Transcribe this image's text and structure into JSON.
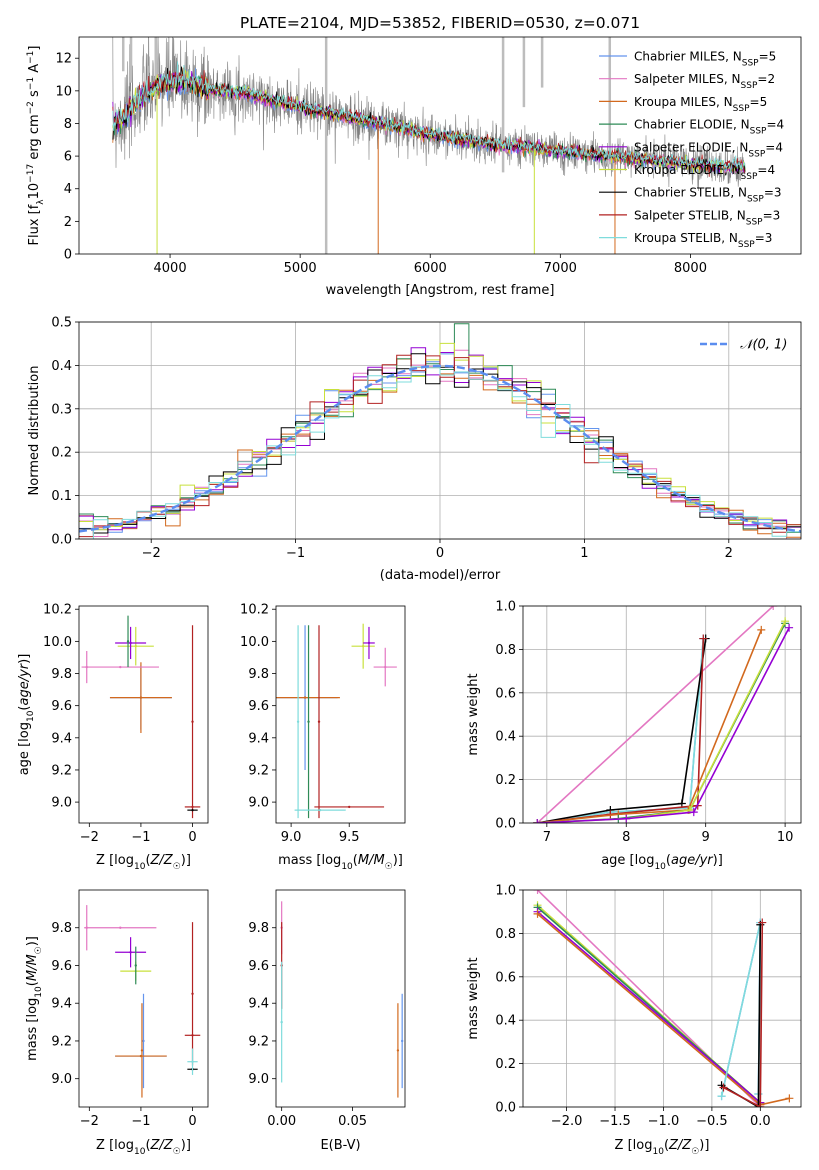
{
  "colors": {
    "chabrier_miles": "#6495ed",
    "salpeter_miles": "#e377c2",
    "kroupa_miles": "#d2691e",
    "chabrier_elodie": "#2e8b57",
    "salpeter_elodie": "#9400d3",
    "kroupa_elodie": "#c8e03c",
    "chabrier_stelib": "#000000",
    "salpeter_stelib": "#b22222",
    "kroupa_stelib": "#7fdcdc",
    "data_grey": "#808080",
    "normal_curve": "#5b8def"
  },
  "chart_data": [
    {
      "id": "spectrum",
      "type": "line",
      "title": "PLATE=2104, MJD=53852, FIBERID=0530, z=0.071",
      "xlabel": "wavelength [Angstrom, rest frame]",
      "ylabel": "Flux [f_λ10^-17 erg cm^-2 s^-1 A^-1]",
      "xlim": [
        3300,
        8850
      ],
      "ylim": [
        0,
        13.3
      ],
      "xticks": [
        4000,
        5000,
        6000,
        7000,
        8000
      ],
      "yticks": [
        0,
        2,
        4,
        6,
        8,
        10,
        12
      ],
      "legend_position": "top-right",
      "legend": [
        {
          "name": "Chabrier MILES",
          "n": "5",
          "color": "#6495ed"
        },
        {
          "name": "Salpeter MILES",
          "n": "2",
          "color": "#e377c2"
        },
        {
          "name": "Kroupa MILES",
          "n": "5",
          "color": "#d2691e"
        },
        {
          "name": "Chabrier ELODIE",
          "n": "4",
          "color": "#2e8b57"
        },
        {
          "name": "Salpeter ELODIE",
          "n": "4",
          "color": "#9400d3"
        },
        {
          "name": "Kroupa ELODIE",
          "n": "4",
          "color": "#c8e03c"
        },
        {
          "name": "Chabrier STELIB",
          "n": "3",
          "color": "#000000"
        },
        {
          "name": "Salpeter STELIB",
          "n": "3",
          "color": "#b22222"
        },
        {
          "name": "Kroupa STELIB",
          "n": "3",
          "color": "#7fdcdc"
        }
      ],
      "continuum": [
        [
          3550,
          8.0
        ],
        [
          3650,
          8.4
        ],
        [
          3800,
          9.8
        ],
        [
          3950,
          10.5
        ],
        [
          4100,
          10.6
        ],
        [
          4300,
          10.1
        ],
        [
          4600,
          9.8
        ],
        [
          5000,
          9.0
        ],
        [
          5500,
          8.2
        ],
        [
          6000,
          7.3
        ],
        [
          6500,
          6.7
        ],
        [
          7000,
          6.3
        ],
        [
          7500,
          5.9
        ],
        [
          8000,
          5.5
        ],
        [
          8400,
          5.3
        ]
      ]
    },
    {
      "id": "residuals",
      "type": "histogram",
      "xlabel": "(data-model)/error",
      "ylabel": "Normed distribution",
      "xlim": [
        -2.5,
        2.5
      ],
      "ylim": [
        0,
        0.5
      ],
      "xticks": [
        -2,
        -1,
        0,
        1,
        2
      ],
      "yticks": [
        0.0,
        0.1,
        0.2,
        0.3,
        0.4,
        0.5
      ],
      "grid": true,
      "legend_position": "top-right",
      "legend": [
        {
          "name": "𝒩(0, 1)",
          "color": "#5b8def",
          "style": "dashed"
        }
      ],
      "bin_width": 0.1,
      "curve": "normal pdf, mean 0, sigma 1"
    },
    {
      "id": "age_vs_Z",
      "type": "errorbar",
      "xlabel": "Z [log10(Z/Z☉)]",
      "ylabel": "age  [log10(age/yr)]",
      "xlim": [
        -2.2,
        0.3
      ],
      "ylim": [
        8.87,
        10.22
      ],
      "xticks": [
        -2,
        -1,
        0
      ],
      "yticks": [
        9.0,
        9.2,
        9.4,
        9.6,
        9.8,
        10.0,
        10.2
      ],
      "points": [
        {
          "x": -1.0,
          "y": 9.65,
          "xerr": 0.6,
          "yerr": 0.2,
          "color": "#6495ed"
        },
        {
          "x": -1.0,
          "y": 9.65,
          "xerr": 0.6,
          "yerr": 0.22,
          "color": "#d2691e"
        },
        {
          "x": -1.4,
          "y": 9.84,
          "xerr": 0.75,
          "yerr": 0.0,
          "color": "#e377c2"
        },
        {
          "x": -2.05,
          "y": 9.84,
          "xerr": 0.0,
          "yerr": 0.1,
          "color": "#e377c2"
        },
        {
          "x": -1.1,
          "y": 9.97,
          "xerr": 0.35,
          "yerr": 0.12,
          "color": "#c8e03c"
        },
        {
          "x": -1.2,
          "y": 9.99,
          "xerr": 0.3,
          "yerr": 0.1,
          "color": "#9400d3"
        },
        {
          "x": -1.25,
          "y": 10.0,
          "xerr": 0.0,
          "yerr": 0.16,
          "color": "#2e8b57"
        },
        {
          "x": 0.0,
          "y": 8.97,
          "xerr": 0.15,
          "yerr": 0.0,
          "color": "#b22222"
        },
        {
          "x": 0.0,
          "y": 9.5,
          "xerr": 0.0,
          "yerr": 0.6,
          "color": "#b22222"
        },
        {
          "x": 0.0,
          "y": 8.95,
          "xerr": 0.1,
          "yerr": 0.0,
          "color": "#000000"
        }
      ]
    },
    {
      "id": "age_vs_mass",
      "type": "errorbar",
      "xlabel": "mass [log10(M/M☉)]",
      "xlim": [
        8.87,
        9.98
      ],
      "ylim": [
        8.87,
        10.22
      ],
      "xticks": [
        9.0,
        9.5
      ],
      "yticks": [
        9.0,
        9.2,
        9.4,
        9.6,
        9.8,
        10.0,
        10.2
      ],
      "points": [
        {
          "x": 9.12,
          "y": 9.65,
          "xerr": 0.28,
          "yerr": 0.45,
          "color": "#6495ed"
        },
        {
          "x": 9.12,
          "y": 9.65,
          "xerr": 0.3,
          "yerr": 0.0,
          "color": "#d2691e"
        },
        {
          "x": 9.15,
          "y": 9.5,
          "xerr": 0.0,
          "yerr": 0.6,
          "color": "#2e8b57"
        },
        {
          "x": 9.62,
          "y": 9.97,
          "xerr": 0.1,
          "yerr": 0.14,
          "color": "#c8e03c"
        },
        {
          "x": 9.67,
          "y": 9.99,
          "xerr": 0.05,
          "yerr": 0.1,
          "color": "#9400d3"
        },
        {
          "x": 9.81,
          "y": 9.84,
          "xerr": 0.1,
          "yerr": 0.12,
          "color": "#e377c2"
        },
        {
          "x": 9.24,
          "y": 9.5,
          "xerr": 0.0,
          "yerr": 0.6,
          "color": "#b22222"
        },
        {
          "x": 9.5,
          "y": 8.97,
          "xerr": 0.3,
          "yerr": 0.0,
          "color": "#b22222"
        },
        {
          "x": 9.25,
          "y": 8.95,
          "xerr": 0.22,
          "yerr": 0.0,
          "color": "#7fdcdc"
        },
        {
          "x": 9.06,
          "y": 9.5,
          "xerr": 0.0,
          "yerr": 0.6,
          "color": "#7fdcdc"
        }
      ]
    },
    {
      "id": "weight_vs_age",
      "type": "line",
      "xlabel": "age  [log10(age/yr)]",
      "ylabel": "mass weight",
      "xlim": [
        6.7,
        10.2
      ],
      "ylim": [
        0,
        1.0
      ],
      "xticks": [
        7,
        8,
        9,
        10
      ],
      "yticks": [
        0.0,
        0.2,
        0.4,
        0.6,
        0.8,
        1.0
      ],
      "grid": true,
      "series": [
        {
          "color": "#e377c2",
          "x": [
            6.88,
            9.85
          ],
          "y": [
            0.0,
            1.0
          ]
        },
        {
          "color": "#6495ed",
          "x": [
            6.88,
            7.8,
            8.8,
            8.97
          ],
          "y": [
            0.0,
            0.05,
            0.07,
            0.85
          ]
        },
        {
          "color": "#7fdcdc",
          "x": [
            6.88,
            7.8,
            8.8,
            8.97
          ],
          "y": [
            0.0,
            0.05,
            0.07,
            0.85
          ]
        },
        {
          "color": "#000000",
          "x": [
            6.88,
            7.8,
            8.7,
            9.0
          ],
          "y": [
            0.0,
            0.06,
            0.09,
            0.85
          ]
        },
        {
          "color": "#b22222",
          "x": [
            6.88,
            7.8,
            8.9,
            8.97
          ],
          "y": [
            0.0,
            0.04,
            0.08,
            0.85
          ]
        },
        {
          "color": "#d2691e",
          "x": [
            6.88,
            7.9,
            8.78,
            9.7
          ],
          "y": [
            0.0,
            0.04,
            0.06,
            0.89
          ]
        },
        {
          "color": "#2e8b57",
          "x": [
            6.88,
            7.9,
            8.8,
            10.0
          ],
          "y": [
            0.0,
            0.02,
            0.06,
            0.92
          ]
        },
        {
          "color": "#c8e03c",
          "x": [
            6.88,
            8.0,
            8.8,
            10.0
          ],
          "y": [
            0.0,
            0.02,
            0.06,
            0.93
          ]
        },
        {
          "color": "#9400d3",
          "x": [
            6.88,
            8.0,
            8.85,
            10.05
          ],
          "y": [
            0.0,
            0.02,
            0.05,
            0.9
          ]
        }
      ]
    },
    {
      "id": "mass_vs_Z",
      "type": "errorbar",
      "xlabel": "Z [log10(Z/Z☉)]",
      "ylabel": "mass [log10(M/M☉)]",
      "xlim": [
        -2.2,
        0.3
      ],
      "ylim": [
        8.85,
        10.0
      ],
      "xticks": [
        -2,
        -1,
        0
      ],
      "yticks": [
        9.0,
        9.2,
        9.4,
        9.6,
        9.8
      ],
      "points": [
        {
          "x": -1.4,
          "y": 9.8,
          "xerr": 0.7,
          "yerr": 0.0,
          "color": "#e377c2"
        },
        {
          "x": -2.05,
          "y": 9.8,
          "xerr": 0.0,
          "yerr": 0.12,
          "color": "#e377c2"
        },
        {
          "x": -1.0,
          "y": 9.12,
          "xerr": 0.5,
          "yerr": 0.0,
          "color": "#6495ed"
        },
        {
          "x": -0.95,
          "y": 9.2,
          "xerr": 0.0,
          "yerr": 0.25,
          "color": "#6495ed"
        },
        {
          "x": -1.0,
          "y": 9.12,
          "xerr": 0.5,
          "yerr": 0.0,
          "color": "#d2691e"
        },
        {
          "x": -0.98,
          "y": 9.15,
          "xerr": 0.0,
          "yerr": 0.25,
          "color": "#d2691e"
        },
        {
          "x": -1.1,
          "y": 9.57,
          "xerr": 0.3,
          "yerr": 0.05,
          "color": "#c8e03c"
        },
        {
          "x": -1.2,
          "y": 9.67,
          "xerr": 0.3,
          "yerr": 0.08,
          "color": "#9400d3"
        },
        {
          "x": -1.1,
          "y": 9.6,
          "xerr": 0.0,
          "yerr": 0.1,
          "color": "#2e8b57"
        },
        {
          "x": 0.0,
          "y": 9.23,
          "xerr": 0.15,
          "yerr": 0.0,
          "color": "#b22222"
        },
        {
          "x": 0.0,
          "y": 9.45,
          "xerr": 0.0,
          "yerr": 0.38,
          "color": "#b22222"
        },
        {
          "x": 0.0,
          "y": 9.05,
          "xerr": 0.1,
          "yerr": 0.0,
          "color": "#000000"
        },
        {
          "x": 0.0,
          "y": 9.09,
          "xerr": 0.1,
          "yerr": 0.07,
          "color": "#7fdcdc"
        }
      ]
    },
    {
      "id": "mass_vs_EBV",
      "type": "errorbar",
      "xlabel": "E(B-V)",
      "xlim": [
        -0.004,
        0.087
      ],
      "ylim": [
        8.85,
        10.0
      ],
      "xticks": [
        0.0,
        0.05
      ],
      "yticks": [
        9.0,
        9.2,
        9.4,
        9.6,
        9.8
      ],
      "points": [
        {
          "x": 0.0,
          "y": 9.8,
          "xerr": 0.0,
          "yerr": 0.14,
          "color": "#e377c2"
        },
        {
          "x": 0.0,
          "y": 9.6,
          "xerr": 0.0,
          "yerr": 0.23,
          "color": "#b22222"
        },
        {
          "x": 0.0,
          "y": 9.3,
          "xerr": 0.0,
          "yerr": 0.32,
          "color": "#7fdcdc"
        },
        {
          "x": 0.082,
          "y": 9.15,
          "xerr": 0.0,
          "yerr": 0.25,
          "color": "#d2691e"
        },
        {
          "x": 0.085,
          "y": 9.2,
          "xerr": 0.0,
          "yerr": 0.25,
          "color": "#6495ed"
        }
      ]
    },
    {
      "id": "weight_vs_Z",
      "type": "line",
      "xlabel": "Z [log10(Z/Z☉)]",
      "ylabel": "mass weight",
      "xlim": [
        -2.45,
        0.42
      ],
      "ylim": [
        0,
        1.0
      ],
      "xticks": [
        -2.0,
        -1.5,
        -1.0,
        -0.5,
        0.0
      ],
      "yticks": [
        0.0,
        0.2,
        0.4,
        0.6,
        0.8,
        1.0
      ],
      "grid": true,
      "series": [
        {
          "color": "#e377c2",
          "x": [
            -2.3,
            0.0
          ],
          "y": [
            1.0,
            0.0
          ]
        },
        {
          "color": "#c8e03c",
          "x": [
            -2.3,
            0.0
          ],
          "y": [
            0.93,
            0.02
          ]
        },
        {
          "color": "#2e8b57",
          "x": [
            -2.3,
            0.0
          ],
          "y": [
            0.92,
            0.02
          ]
        },
        {
          "color": "#9400d3",
          "x": [
            -2.3,
            0.0
          ],
          "y": [
            0.9,
            0.02
          ]
        },
        {
          "color": "#d2691e",
          "x": [
            -2.3,
            0.0,
            0.3
          ],
          "y": [
            0.89,
            0.01,
            0.04
          ]
        },
        {
          "color": "#6495ed",
          "x": [
            -0.4,
            0.0,
            -0.02
          ],
          "y": [
            0.05,
            0.85,
            0.06
          ]
        },
        {
          "color": "#7fdcdc",
          "x": [
            -0.4,
            0.0,
            -0.02
          ],
          "y": [
            0.05,
            0.85,
            0.06
          ]
        },
        {
          "color": "#000000",
          "x": [
            -0.4,
            -0.02,
            0.0
          ],
          "y": [
            0.1,
            0.0,
            0.84
          ]
        },
        {
          "color": "#b22222",
          "x": [
            -0.38,
            0.0,
            0.02
          ],
          "y": [
            0.09,
            0.0,
            0.85
          ]
        }
      ]
    }
  ]
}
